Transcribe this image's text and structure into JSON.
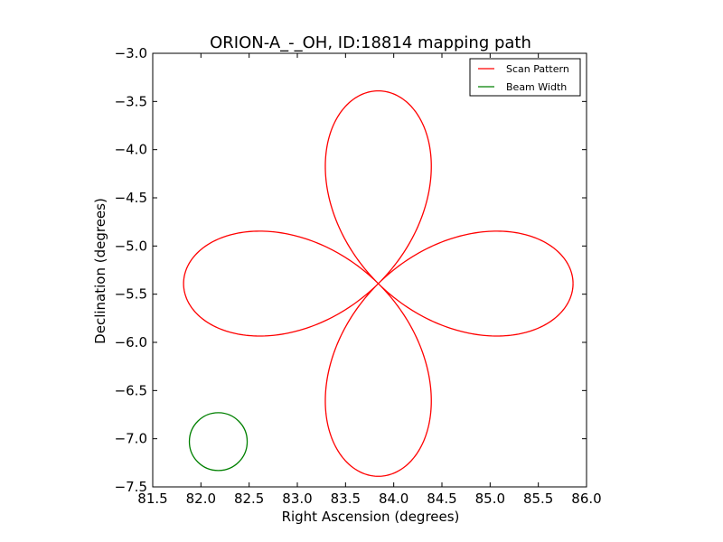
{
  "chart_data": {
    "type": "line",
    "title": "ORION-A_-_OH, ID:18814 mapping path",
    "xlabel": "Right Ascension (degrees)",
    "ylabel": "Declination (degrees)",
    "xlim": [
      81.5,
      86.0
    ],
    "ylim": [
      -7.5,
      -3.0
    ],
    "xticks": [
      "81.5",
      "82.0",
      "82.5",
      "83.0",
      "83.5",
      "84.0",
      "84.5",
      "85.0",
      "85.5",
      "86.0"
    ],
    "yticks": [
      "−3.0",
      "−3.5",
      "−4.0",
      "−4.5",
      "−5.0",
      "−5.5",
      "−6.0",
      "−6.5",
      "−7.0",
      "−7.5"
    ],
    "grid": false,
    "legend_position": "top-right",
    "series": [
      {
        "name": "Scan Pattern",
        "color": "#ff0000",
        "shape": "four-petal rose path",
        "center": [
          83.84,
          -5.39
        ],
        "petal_length_x": 2.02,
        "petal_length_y": 2.0
      },
      {
        "name": "Beam Width",
        "color": "#008000",
        "shape": "circle",
        "center": [
          82.18,
          -7.03
        ],
        "radius": 0.3
      }
    ]
  }
}
